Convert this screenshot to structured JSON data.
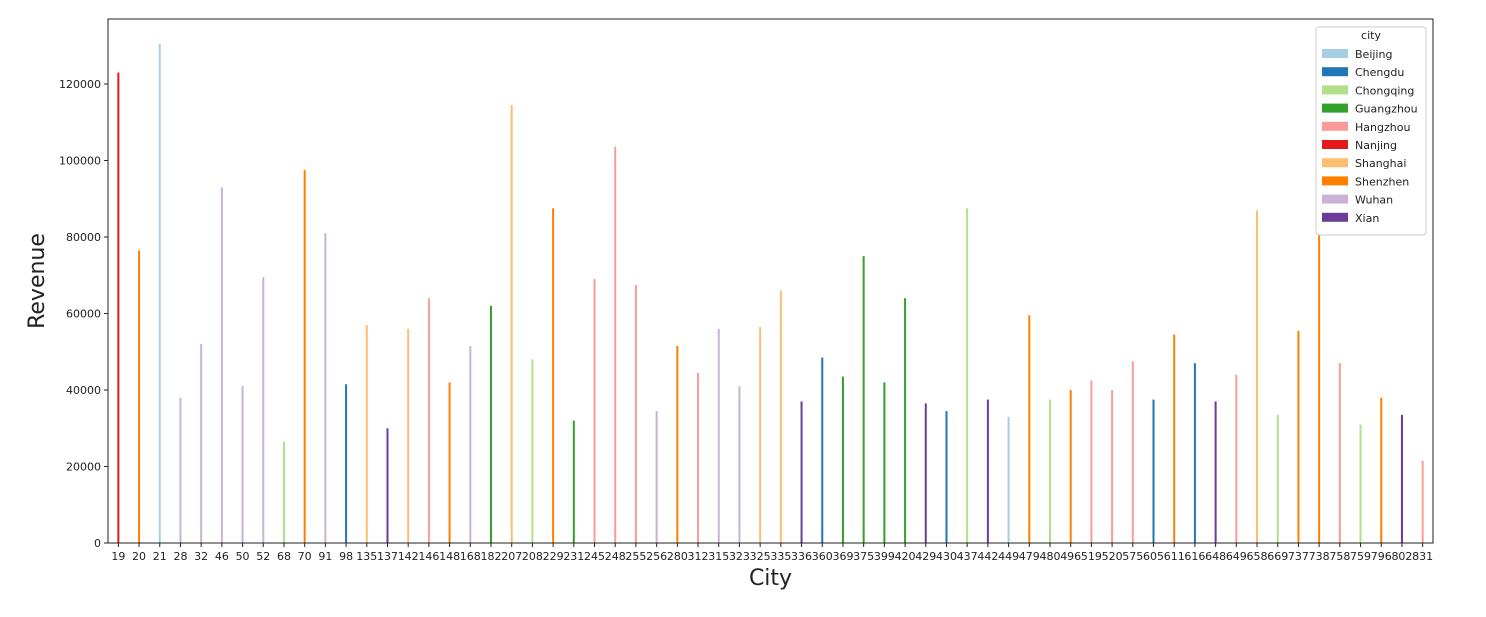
{
  "chart_data": {
    "type": "bar",
    "xlabel": "City",
    "ylabel": "Revenue",
    "ylim": [
      0,
      137000
    ],
    "yticks": [
      0,
      20000,
      40000,
      60000,
      80000,
      100000,
      120000
    ],
    "grid": false,
    "legend": {
      "title": "city",
      "placement": "top-right"
    },
    "series": [
      {
        "name": "Beijing",
        "color": "#a6cee3"
      },
      {
        "name": "Chengdu",
        "color": "#1f78b4"
      },
      {
        "name": "Chongqing",
        "color": "#b2df8a"
      },
      {
        "name": "Guangzhou",
        "color": "#33a02c"
      },
      {
        "name": "Hangzhou",
        "color": "#fb9a99"
      },
      {
        "name": "Nanjing",
        "color": "#e31a1c"
      },
      {
        "name": "Shanghai",
        "color": "#fdbf6f"
      },
      {
        "name": "Shenzhen",
        "color": "#ff7f00"
      },
      {
        "name": "Wuhan",
        "color": "#cab2d6"
      },
      {
        "name": "Xian",
        "color": "#6a3d9a"
      }
    ],
    "categories": [
      "19",
      "20",
      "21",
      "28",
      "32",
      "46",
      "50",
      "52",
      "68",
      "70",
      "91",
      "98",
      "135",
      "137",
      "142",
      "146",
      "148",
      "168",
      "182",
      "207",
      "208",
      "229",
      "231",
      "245",
      "248",
      "255",
      "256",
      "280",
      "312",
      "315",
      "323",
      "325",
      "335",
      "336",
      "360",
      "369",
      "375",
      "399",
      "420",
      "429",
      "430",
      "437",
      "442",
      "449",
      "479",
      "480",
      "496",
      "519",
      "520",
      "575",
      "605",
      "611",
      "616",
      "648",
      "649",
      "658",
      "669",
      "737",
      "738",
      "758",
      "759",
      "796",
      "802",
      "831"
    ],
    "bars": [
      {
        "category": "19",
        "city": "Nanjing",
        "value": 123000
      },
      {
        "category": "20",
        "city": "Shenzhen",
        "value": 76500
      },
      {
        "category": "21",
        "city": "Beijing",
        "value": 130500
      },
      {
        "category": "28",
        "city": "Wuhan",
        "value": 38000
      },
      {
        "category": "32",
        "city": "Wuhan",
        "value": 52000
      },
      {
        "category": "46",
        "city": "Wuhan",
        "value": 93000
      },
      {
        "category": "50",
        "city": "Wuhan",
        "value": 41000
      },
      {
        "category": "52",
        "city": "Wuhan",
        "value": 69500
      },
      {
        "category": "68",
        "city": "Chongqing",
        "value": 26500
      },
      {
        "category": "70",
        "city": "Shenzhen",
        "value": 97500
      },
      {
        "category": "91",
        "city": "Wuhan",
        "value": 81000
      },
      {
        "category": "98",
        "city": "Chengdu",
        "value": 41500
      },
      {
        "category": "135",
        "city": "Shanghai",
        "value": 57000
      },
      {
        "category": "137",
        "city": "Xian",
        "value": 30000
      },
      {
        "category": "142",
        "city": "Shanghai",
        "value": 56000
      },
      {
        "category": "146",
        "city": "Hangzhou",
        "value": 64000
      },
      {
        "category": "148",
        "city": "Shenzhen",
        "value": 42000
      },
      {
        "category": "168",
        "city": "Wuhan",
        "value": 51500
      },
      {
        "category": "182",
        "city": "Guangzhou",
        "value": 62000
      },
      {
        "category": "207",
        "city": "Shanghai",
        "value": 114500
      },
      {
        "category": "208",
        "city": "Chongqing",
        "value": 48000
      },
      {
        "category": "229",
        "city": "Shenzhen",
        "value": 87500
      },
      {
        "category": "231",
        "city": "Guangzhou",
        "value": 32000
      },
      {
        "category": "245",
        "city": "Hangzhou",
        "value": 69000
      },
      {
        "category": "248",
        "city": "Hangzhou",
        "value": 103500
      },
      {
        "category": "255",
        "city": "Hangzhou",
        "value": 67500
      },
      {
        "category": "256",
        "city": "Wuhan",
        "value": 34500
      },
      {
        "category": "280",
        "city": "Shenzhen",
        "value": 51500
      },
      {
        "category": "312",
        "city": "Hangzhou",
        "value": 44500
      },
      {
        "category": "315",
        "city": "Wuhan",
        "value": 56000
      },
      {
        "category": "323",
        "city": "Wuhan",
        "value": 41000
      },
      {
        "category": "325",
        "city": "Shanghai",
        "value": 56500
      },
      {
        "category": "335",
        "city": "Shanghai",
        "value": 66000
      },
      {
        "category": "336",
        "city": "Xian",
        "value": 37000
      },
      {
        "category": "360",
        "city": "Chengdu",
        "value": 48500
      },
      {
        "category": "369",
        "city": "Guangzhou",
        "value": 43500
      },
      {
        "category": "375",
        "city": "Guangzhou",
        "value": 75000
      },
      {
        "category": "399",
        "city": "Guangzhou",
        "value": 42000
      },
      {
        "category": "420",
        "city": "Guangzhou",
        "value": 64000
      },
      {
        "category": "429",
        "city": "Xian",
        "value": 36500
      },
      {
        "category": "430",
        "city": "Chengdu",
        "value": 34500
      },
      {
        "category": "437",
        "city": "Chongqing",
        "value": 87500
      },
      {
        "category": "442",
        "city": "Xian",
        "value": 37500
      },
      {
        "category": "449",
        "city": "Beijing",
        "value": 33000
      },
      {
        "category": "479",
        "city": "Shenzhen",
        "value": 59500
      },
      {
        "category": "480",
        "city": "Chongqing",
        "value": 37500
      },
      {
        "category": "496",
        "city": "Shenzhen",
        "value": 40000
      },
      {
        "category": "519",
        "city": "Hangzhou",
        "value": 42500
      },
      {
        "category": "520",
        "city": "Hangzhou",
        "value": 40000
      },
      {
        "category": "575",
        "city": "Hangzhou",
        "value": 47500
      },
      {
        "category": "605",
        "city": "Chengdu",
        "value": 37500
      },
      {
        "category": "611",
        "city": "Shenzhen",
        "value": 54500
      },
      {
        "category": "616",
        "city": "Chengdu",
        "value": 47000
      },
      {
        "category": "648",
        "city": "Xian",
        "value": 37000
      },
      {
        "category": "649",
        "city": "Hangzhou",
        "value": 44000
      },
      {
        "category": "658",
        "city": "Shanghai",
        "value": 87000
      },
      {
        "category": "669",
        "city": "Chongqing",
        "value": 33500
      },
      {
        "category": "737",
        "city": "Shenzhen",
        "value": 55500
      },
      {
        "category": "738",
        "city": "Shenzhen",
        "value": 82000
      },
      {
        "category": "758",
        "city": "Hangzhou",
        "value": 47000
      },
      {
        "category": "759",
        "city": "Chongqing",
        "value": 31000
      },
      {
        "category": "796",
        "city": "Shenzhen",
        "value": 38000
      },
      {
        "category": "802",
        "city": "Xian",
        "value": 33500
      },
      {
        "category": "831",
        "city": "Hangzhou",
        "value": 21500
      }
    ]
  }
}
